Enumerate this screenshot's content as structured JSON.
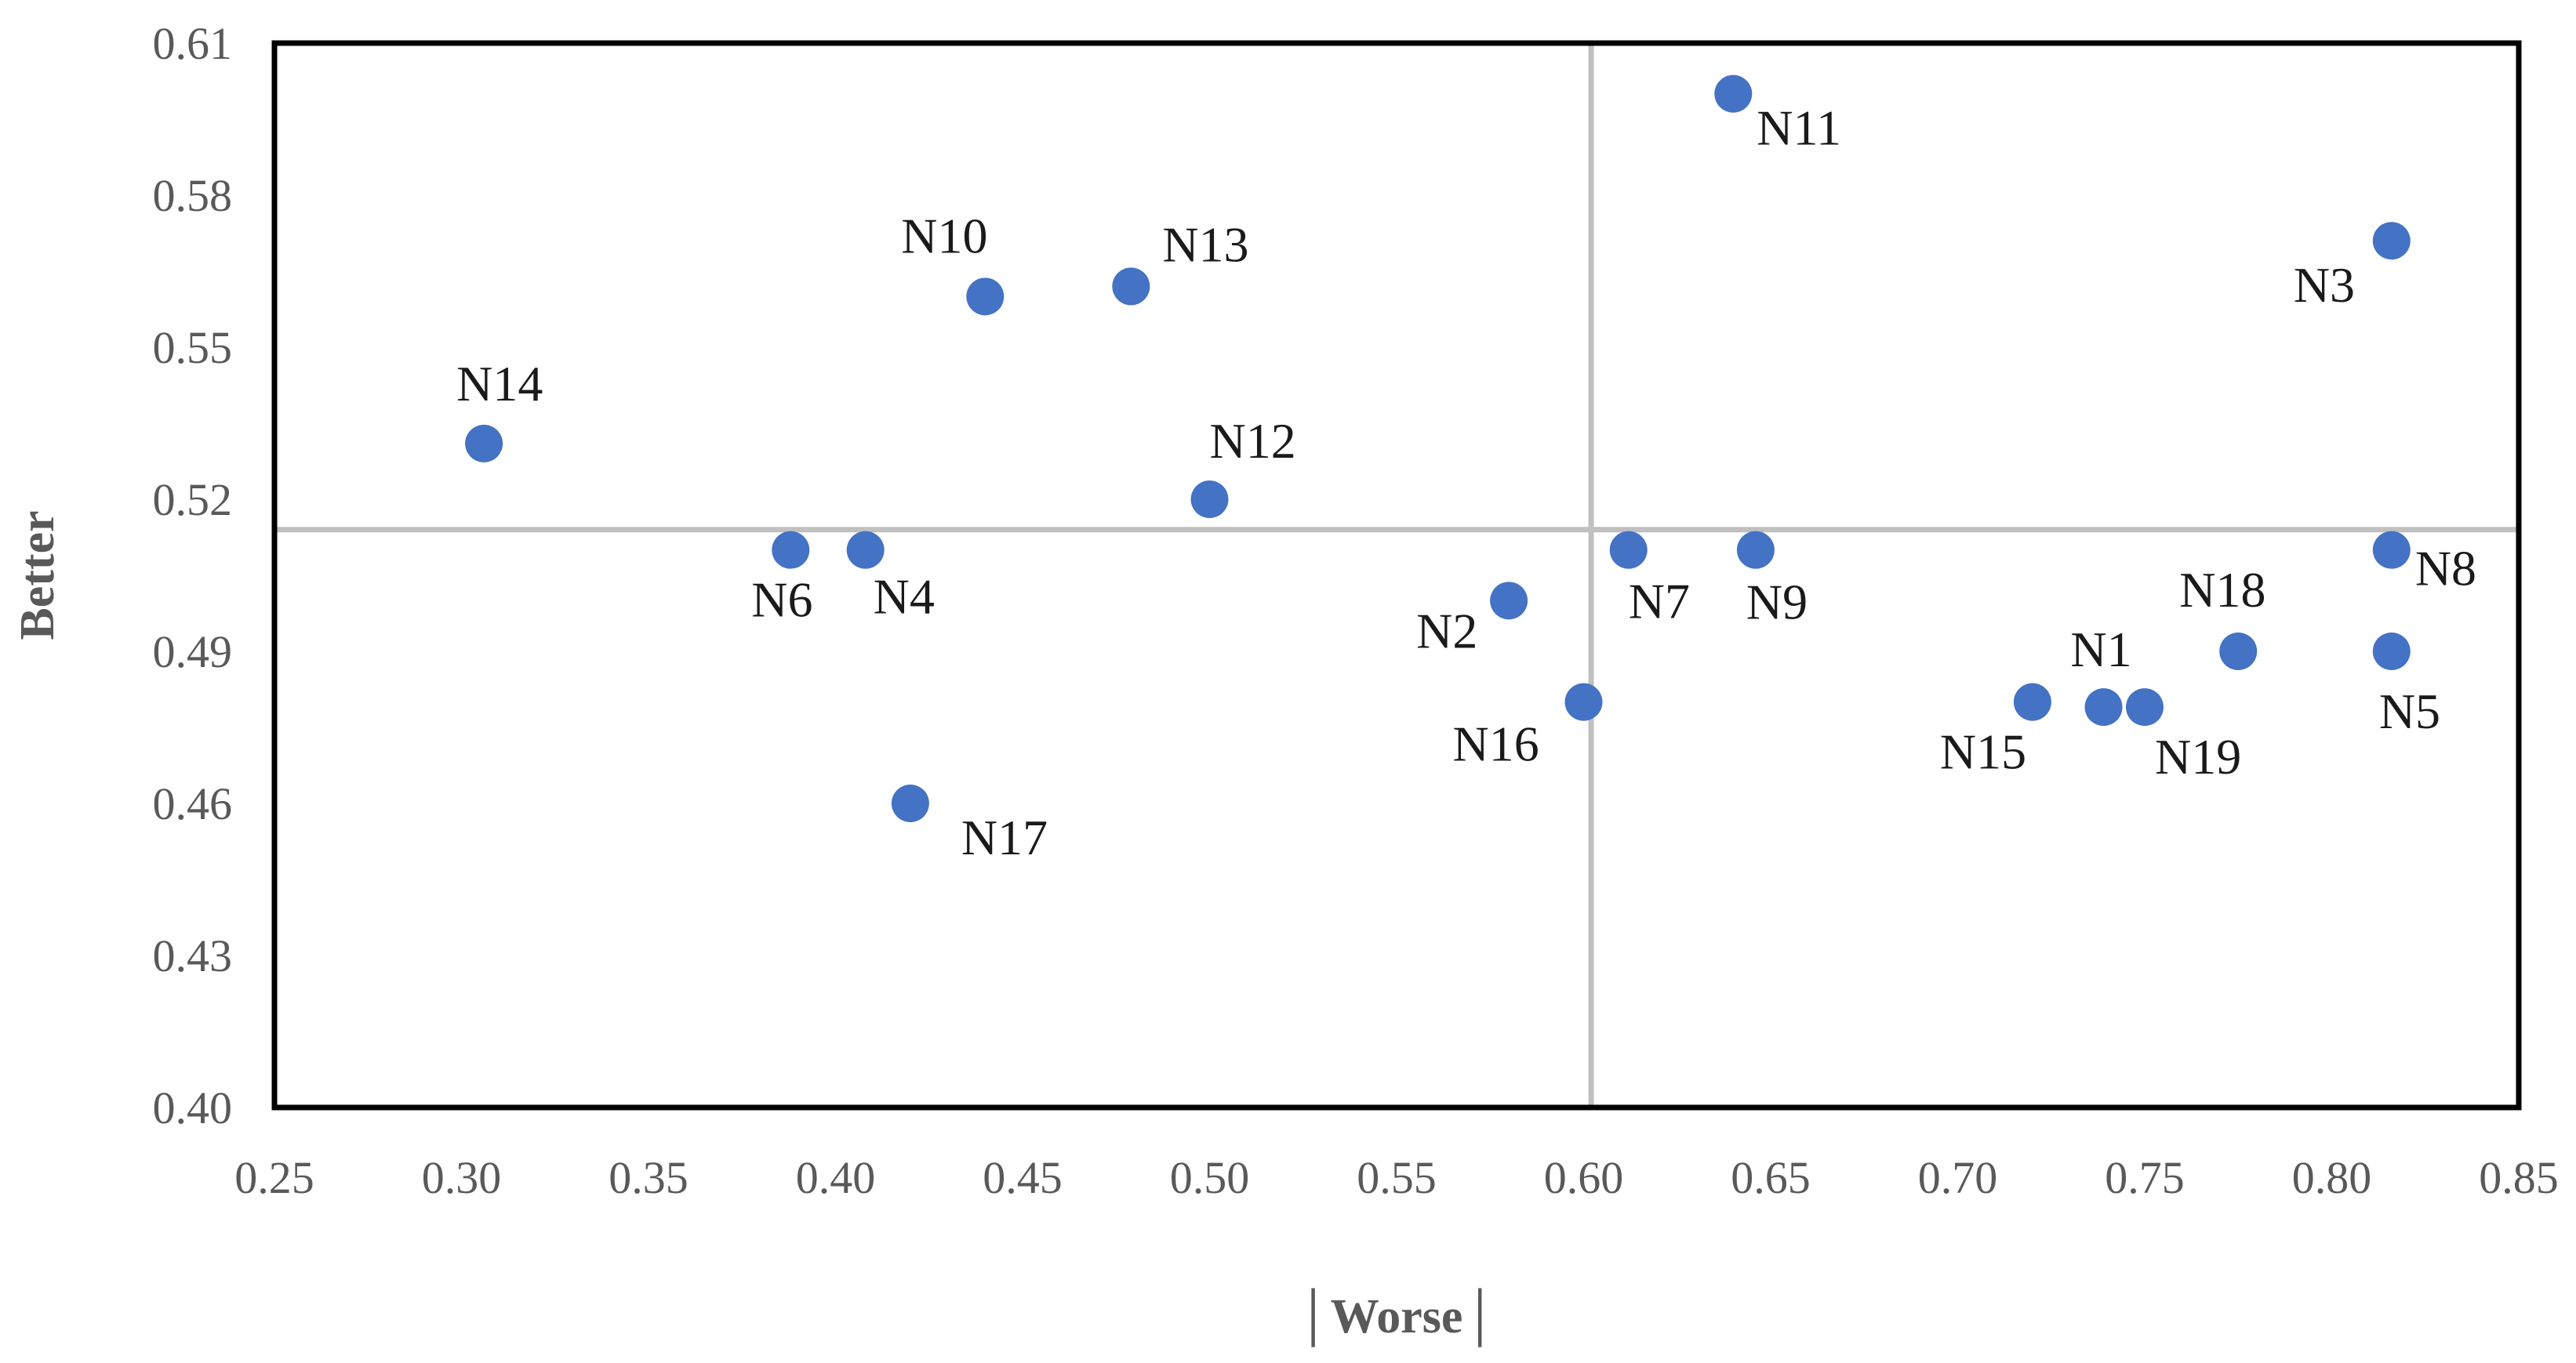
{
  "chart_data": {
    "type": "scatter",
    "xlabel": "│Worse│",
    "ylabel": "Better",
    "xlim": [
      0.25,
      0.85
    ],
    "ylim": [
      0.4,
      0.61
    ],
    "xticks": [
      "0.25",
      "0.30",
      "0.35",
      "0.40",
      "0.45",
      "0.50",
      "0.55",
      "0.60",
      "0.65",
      "0.70",
      "0.75",
      "0.80",
      "0.85"
    ],
    "yticks": [
      "0.40",
      "0.43",
      "0.46",
      "0.49",
      "0.52",
      "0.55",
      "0.58",
      "0.61"
    ],
    "reference_lines": {
      "x": 0.602,
      "y": 0.514
    },
    "grid": false,
    "point_color": "#4472C4",
    "points": [
      {
        "label": "N1",
        "x": 0.739,
        "y": 0.479
      },
      {
        "label": "N2",
        "x": 0.58,
        "y": 0.5
      },
      {
        "label": "N3",
        "x": 0.816,
        "y": 0.571
      },
      {
        "label": "N4",
        "x": 0.408,
        "y": 0.51
      },
      {
        "label": "N5",
        "x": 0.816,
        "y": 0.49
      },
      {
        "label": "N6",
        "x": 0.388,
        "y": 0.51
      },
      {
        "label": "N7",
        "x": 0.612,
        "y": 0.51
      },
      {
        "label": "N8",
        "x": 0.816,
        "y": 0.51
      },
      {
        "label": "N9",
        "x": 0.646,
        "y": 0.51
      },
      {
        "label": "N10",
        "x": 0.44,
        "y": 0.56
      },
      {
        "label": "N11",
        "x": 0.64,
        "y": 0.6
      },
      {
        "label": "N12",
        "x": 0.5,
        "y": 0.52
      },
      {
        "label": "N13",
        "x": 0.479,
        "y": 0.562
      },
      {
        "label": "N14",
        "x": 0.306,
        "y": 0.531
      },
      {
        "label": "N15",
        "x": 0.72,
        "y": 0.48
      },
      {
        "label": "N16",
        "x": 0.6,
        "y": 0.48
      },
      {
        "label": "N17",
        "x": 0.42,
        "y": 0.46
      },
      {
        "label": "N18",
        "x": 0.775,
        "y": 0.49
      },
      {
        "label": "N19",
        "x": 0.75,
        "y": 0.479
      }
    ]
  }
}
